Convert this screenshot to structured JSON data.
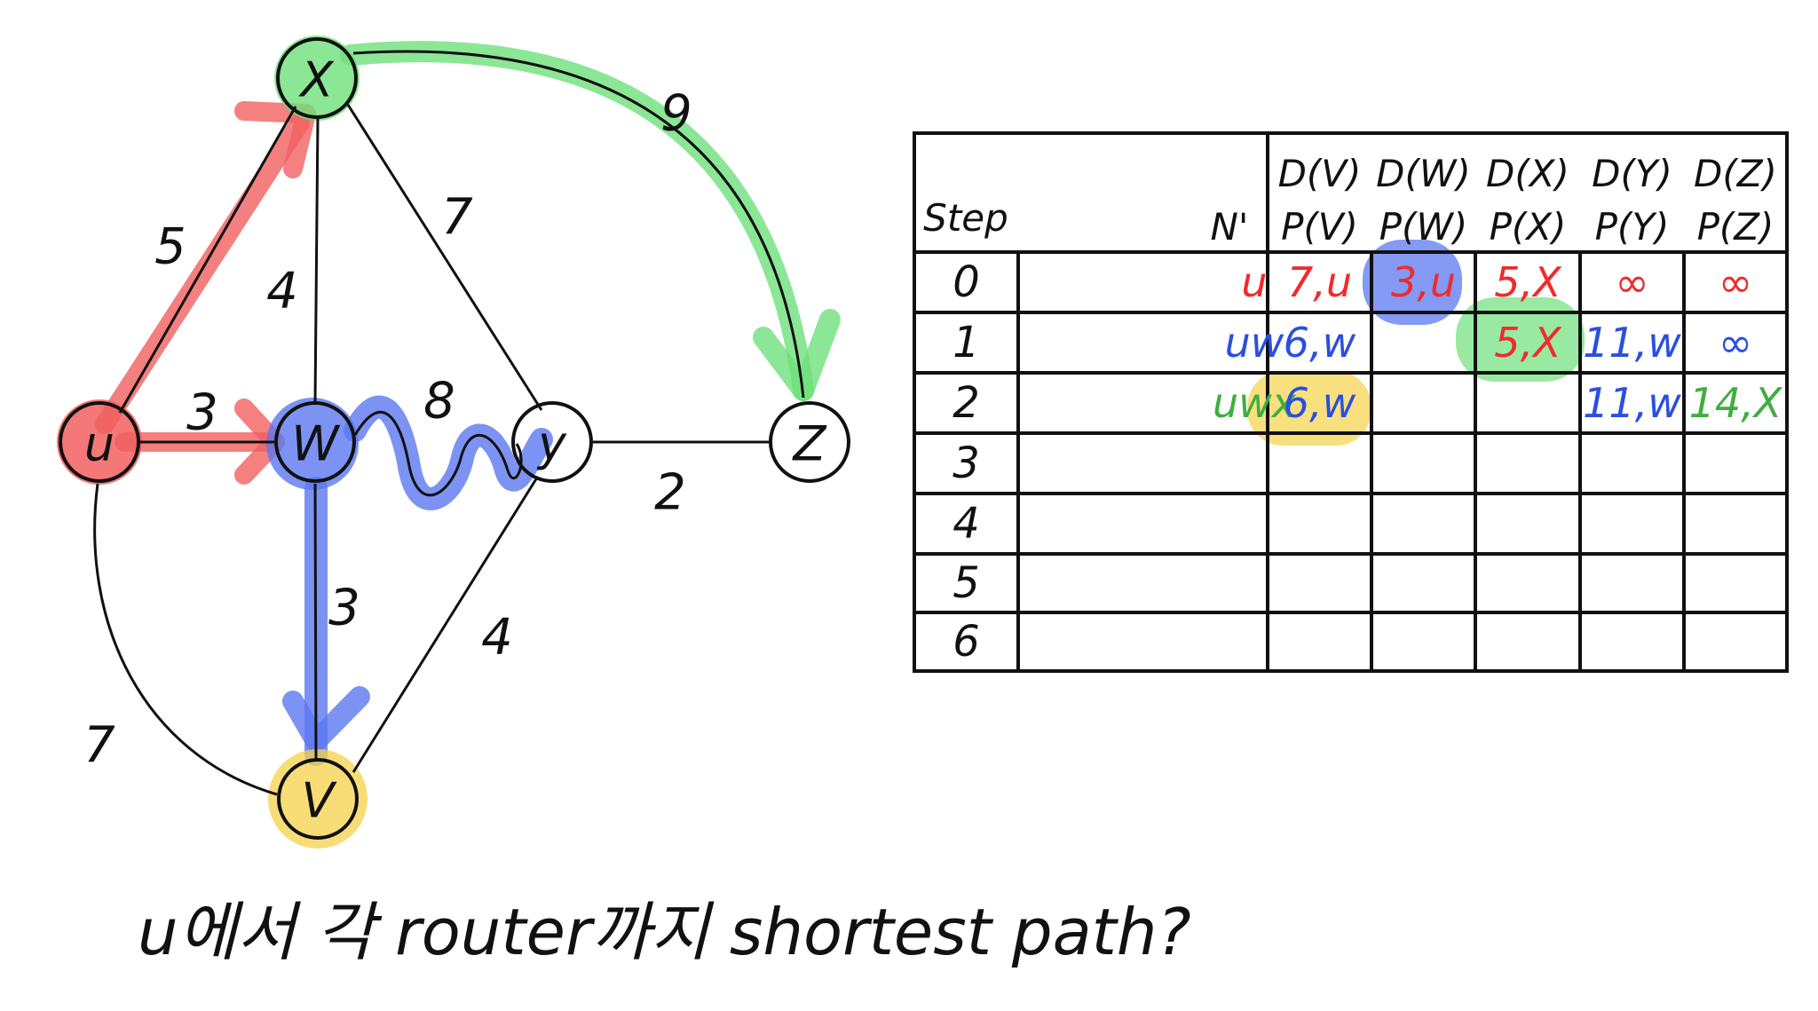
{
  "graph": {
    "nodes": [
      {
        "id": "u",
        "label": "u"
      },
      {
        "id": "x",
        "label": "X"
      },
      {
        "id": "w",
        "label": "W"
      },
      {
        "id": "y",
        "label": "y"
      },
      {
        "id": "z",
        "label": "Z"
      },
      {
        "id": "v",
        "label": "V"
      }
    ],
    "edges": [
      {
        "id": "u-x",
        "weight": "5"
      },
      {
        "id": "u-w",
        "weight": "3"
      },
      {
        "id": "u-v",
        "weight": "7"
      },
      {
        "id": "x-w",
        "weight": "4"
      },
      {
        "id": "x-y",
        "weight": "7"
      },
      {
        "id": "x-z",
        "weight": "9"
      },
      {
        "id": "w-y",
        "weight": "8"
      },
      {
        "id": "w-v",
        "weight": "3"
      },
      {
        "id": "y-z",
        "weight": "2"
      },
      {
        "id": "y-v",
        "weight": "4"
      }
    ],
    "colors": {
      "red": "#ef2b2b",
      "blue": "#2a4fe0",
      "green": "#3fae3f",
      "yellow_hl": "#f5d24a",
      "red_hl": "#f26060",
      "blue_hl": "#5b78f0",
      "green_hl": "#6ee07a"
    }
  },
  "table": {
    "step_header": "Step",
    "nprime_header": "N'",
    "col_headers": [
      {
        "d": "D(V)",
        "p": "P(V)"
      },
      {
        "d": "D(W)",
        "p": "P(W)"
      },
      {
        "d": "D(X)",
        "p": "P(X)"
      },
      {
        "d": "D(Y)",
        "p": "P(Y)"
      },
      {
        "d": "D(Z)",
        "p": "P(Z)"
      }
    ],
    "steps": [
      "0",
      "1",
      "2",
      "3",
      "4",
      "5",
      "6"
    ],
    "rows": [
      {
        "nprime": "u",
        "nprime_color": "red",
        "cells": [
          {
            "t": "7,u",
            "c": "red"
          },
          {
            "t": "3,u",
            "c": "red"
          },
          {
            "t": "5,X",
            "c": "red"
          },
          {
            "t": "∞",
            "c": "red"
          },
          {
            "t": "∞",
            "c": "red"
          }
        ]
      },
      {
        "nprime": "uw",
        "nprime_color": "blue",
        "cells": [
          {
            "t": "6,w",
            "c": "blue"
          },
          {
            "t": "",
            "c": "blue"
          },
          {
            "t": "5,X",
            "c": "red"
          },
          {
            "t": "11,w",
            "c": "blue"
          },
          {
            "t": "∞",
            "c": "blue"
          }
        ]
      },
      {
        "nprime": "uwx",
        "nprime_color": "green",
        "cells": [
          {
            "t": "6,w",
            "c": "blue"
          },
          {
            "t": "",
            "c": "blue"
          },
          {
            "t": "",
            "c": "blue"
          },
          {
            "t": "11,w",
            "c": "blue"
          },
          {
            "t": "14,X",
            "c": "green"
          }
        ]
      }
    ]
  },
  "question": "u에서 각 router까지 shortest path?"
}
